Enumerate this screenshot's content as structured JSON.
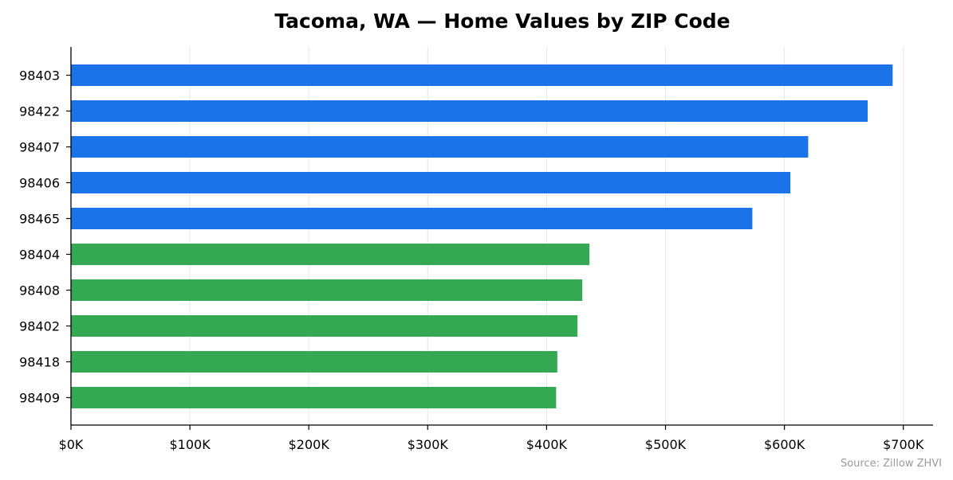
{
  "chart_data": {
    "type": "bar",
    "orientation": "horizontal",
    "title": "Tacoma, WA — Home Values by ZIP Code",
    "xlabel": "",
    "ylabel": "",
    "categories": [
      "98403",
      "98422",
      "98407",
      "98406",
      "98465",
      "98404",
      "98408",
      "98402",
      "98418",
      "98409"
    ],
    "values": [
      691000,
      670000,
      620000,
      605000,
      573000,
      436000,
      430000,
      426000,
      409000,
      408000
    ],
    "bar_colors": [
      "#1a73e8",
      "#1a73e8",
      "#1a73e8",
      "#1a73e8",
      "#1a73e8",
      "#34a853",
      "#34a853",
      "#34a853",
      "#34a853",
      "#34a853"
    ],
    "xlim": [
      0,
      725000
    ],
    "x_ticks": [
      0,
      100000,
      200000,
      300000,
      400000,
      500000,
      600000,
      700000
    ],
    "x_tick_labels": [
      "$0K",
      "$100K",
      "$200K",
      "$300K",
      "$400K",
      "$500K",
      "$600K",
      "$700K"
    ],
    "grid": "vertical",
    "legend": "none",
    "source_note": "Source: Zillow ZHVI"
  }
}
